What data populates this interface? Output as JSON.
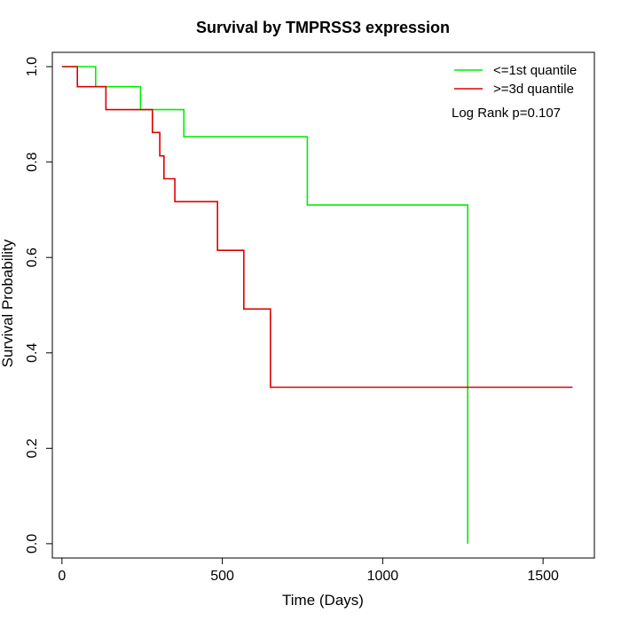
{
  "chart_data": {
    "type": "line",
    "title": "Survival by TMPRSS3 expression",
    "xlabel": "Time (Days)",
    "ylabel": "Survival Probability",
    "xlim": [
      -30,
      1660
    ],
    "ylim": [
      -0.03,
      1.03
    ],
    "x_ticks": [
      0,
      500,
      1000,
      1500
    ],
    "x_tick_labels": [
      "0",
      "500",
      "1000",
      "1500"
    ],
    "y_ticks": [
      0.0,
      0.2,
      0.4,
      0.6,
      0.8,
      1.0
    ],
    "y_tick_labels": [
      "0.0",
      "0.2",
      "0.4",
      "0.6",
      "0.8",
      "1.0"
    ],
    "grid": false,
    "legend_position": "top-right",
    "annotation": "Log Rank p=0.107",
    "series": [
      {
        "name": "<=1st quantile",
        "color": "#00ee00",
        "step": true,
        "x": [
          0,
          105,
          245,
          380,
          765,
          1265,
          1265
        ],
        "y": [
          1.0,
          0.958,
          0.91,
          0.853,
          0.71,
          0.71,
          0.0
        ]
      },
      {
        "name": ">=3d quantile",
        "color": "#dd0000",
        "step": true,
        "x": [
          0,
          48,
          137,
          282,
          305,
          318,
          352,
          485,
          567,
          650,
          1592
        ],
        "y": [
          1.0,
          0.958,
          0.91,
          0.862,
          0.813,
          0.765,
          0.717,
          0.615,
          0.492,
          0.328,
          0.328
        ]
      }
    ]
  }
}
